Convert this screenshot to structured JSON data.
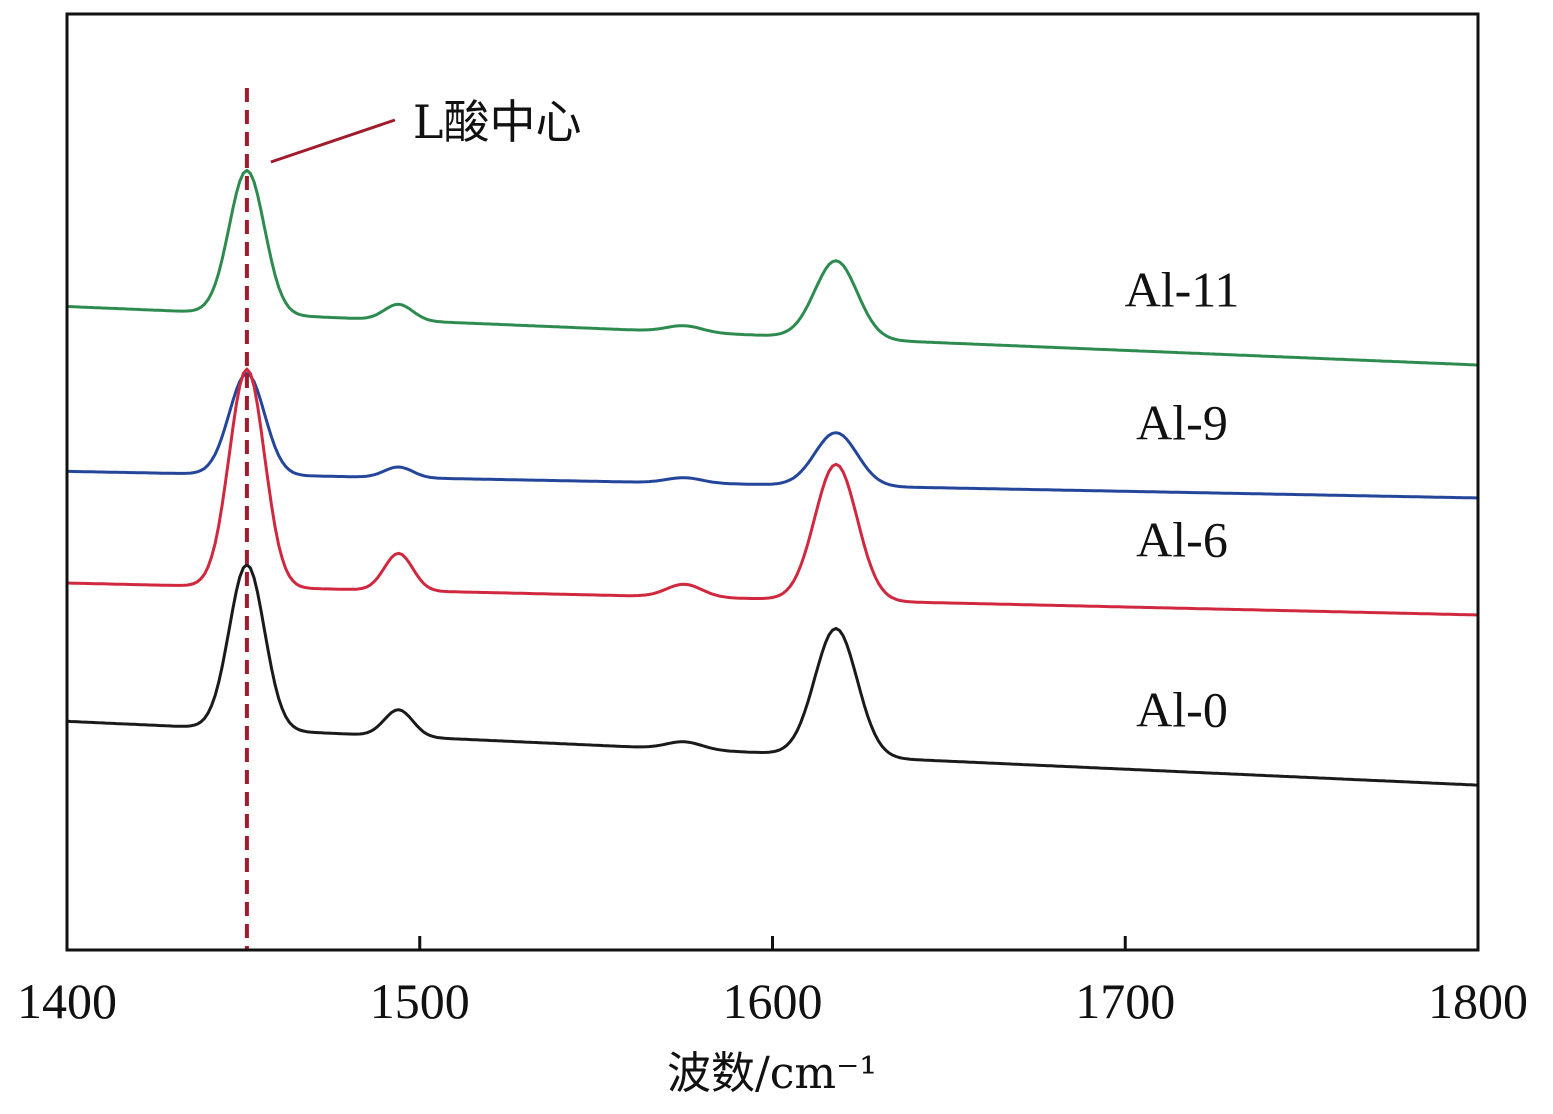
{
  "chart_data": {
    "type": "line",
    "title": "",
    "xlabel": "波数/cm⁻¹",
    "ylabel": "",
    "xlim": [
      1400,
      1800
    ],
    "xticks": [
      1400,
      1500,
      1600,
      1700,
      1800
    ],
    "yticks_visible": false,
    "grid": false,
    "peak_positions": [
      1451,
      1494,
      1575,
      1618
    ],
    "annotation": {
      "text": "L酸中心",
      "x": 1451,
      "line_color": "#a01c2c"
    },
    "series": [
      {
        "name": "Al-11",
        "color": "#2e8b4f",
        "offset": 3.3,
        "baseline_start": 0.55,
        "baseline_end": 0.0,
        "peak_heights": [
          1.35,
          0.15,
          0.06,
          0.73
        ]
      },
      {
        "name": "Al-9",
        "color": "#24469a",
        "offset": 2.05,
        "baseline_start": 0.25,
        "baseline_end": 0.0,
        "peak_heights": [
          0.95,
          0.1,
          0.05,
          0.5
        ]
      },
      {
        "name": "Al-6",
        "color": "#d0283e",
        "offset": 0.95,
        "baseline_start": 0.3,
        "baseline_end": 0.0,
        "peak_heights": [
          2.05,
          0.35,
          0.12,
          1.28
        ]
      },
      {
        "name": "Al-0",
        "color": "#1a1a1a",
        "offset": -0.65,
        "baseline_start": 0.6,
        "baseline_end": 0.0,
        "peak_heights": [
          1.55,
          0.25,
          0.07,
          1.2
        ]
      }
    ]
  }
}
